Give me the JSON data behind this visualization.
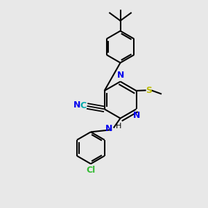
{
  "background_color": "#e8e8e8",
  "bond_color": "#000000",
  "N_color": "#0000ee",
  "S_color": "#bbbb00",
  "Cl_color": "#33bb33",
  "C_color": "#00aaaa",
  "figsize": [
    3.0,
    3.0
  ],
  "dpi": 100,
  "xlim": [
    0,
    10
  ],
  "ylim": [
    0,
    10
  ]
}
